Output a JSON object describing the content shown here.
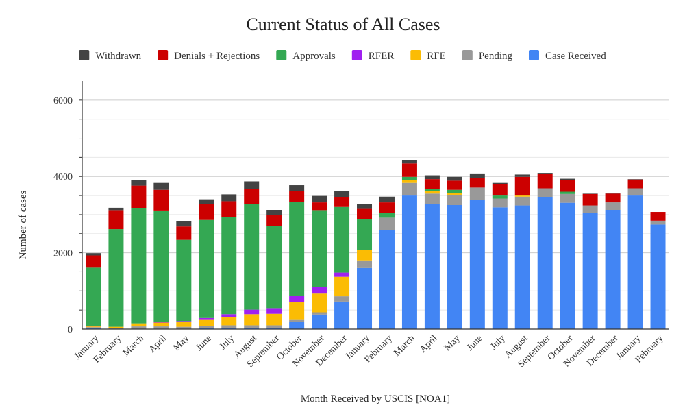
{
  "chart_data": {
    "type": "bar",
    "stacked": true,
    "title": "Current Status of All Cases",
    "xlabel": "Month Received by USCIS [NOA1]",
    "ylabel": "Number of cases",
    "ylim": [
      0,
      6000
    ],
    "yticks": [
      0,
      2000,
      4000,
      6000
    ],
    "ytick_labels": [
      "0",
      "2000",
      "4000",
      "6000"
    ],
    "grid": true,
    "legend_position": "top",
    "categories": [
      "January",
      "February",
      "March",
      "April",
      "May",
      "June",
      "July",
      "August",
      "September",
      "October",
      "November",
      "December",
      "January",
      "February",
      "March",
      "April",
      "May",
      "June",
      "July",
      "August",
      "September",
      "October",
      "November",
      "December",
      "January",
      "February"
    ],
    "legend": [
      {
        "name": "Withdrawn",
        "color": "#434343"
      },
      {
        "name": "Denials + Rejections",
        "color": "#cc0000"
      },
      {
        "name": "Approvals",
        "color": "#34a853"
      },
      {
        "name": "RFER",
        "color": "#a020f0"
      },
      {
        "name": "RFE",
        "color": "#fbbc04"
      },
      {
        "name": "Pending",
        "color": "#999999"
      },
      {
        "name": "Case Received",
        "color": "#4285f4"
      }
    ],
    "series": [
      {
        "name": "Case Received",
        "color": "#4285f4",
        "values": [
          20,
          0,
          0,
          0,
          0,
          30,
          30,
          30,
          30,
          180,
          380,
          720,
          1600,
          2600,
          3500,
          3270,
          3250,
          3390,
          3190,
          3240,
          3460,
          3310,
          3050,
          3120,
          3500,
          2740
        ]
      },
      {
        "name": "Pending",
        "color": "#999999",
        "values": [
          30,
          30,
          70,
          70,
          60,
          60,
          70,
          70,
          70,
          60,
          60,
          140,
          200,
          320,
          330,
          280,
          270,
          320,
          230,
          230,
          230,
          230,
          190,
          200,
          190,
          100
        ]
      },
      {
        "name": "RFE",
        "color": "#fbbc04",
        "values": [
          20,
          30,
          80,
          100,
          120,
          150,
          220,
          290,
          300,
          460,
          490,
          510,
          280,
          0,
          70,
          60,
          40,
          0,
          0,
          30,
          0,
          0,
          0,
          0,
          0,
          0
        ]
      },
      {
        "name": "RFER",
        "color": "#a020f0",
        "values": [
          10,
          0,
          0,
          20,
          30,
          50,
          70,
          120,
          150,
          180,
          180,
          110,
          0,
          0,
          0,
          0,
          0,
          0,
          0,
          0,
          0,
          0,
          0,
          0,
          0,
          0
        ]
      },
      {
        "name": "Approvals",
        "color": "#34a853",
        "values": [
          1530,
          2560,
          3020,
          2900,
          2130,
          2570,
          2540,
          2770,
          2150,
          2460,
          1990,
          1720,
          810,
          120,
          90,
          60,
          90,
          0,
          80,
          0,
          0,
          60,
          0,
          0,
          0,
          0
        ]
      },
      {
        "name": "Denials + Rejections",
        "color": "#cc0000",
        "values": [
          320,
          480,
          590,
          560,
          350,
          410,
          420,
          390,
          290,
          270,
          220,
          250,
          260,
          280,
          350,
          260,
          240,
          250,
          300,
          490,
          370,
          300,
          300,
          230,
          230,
          230
        ]
      },
      {
        "name": "Withdrawn",
        "color": "#434343",
        "values": [
          60,
          80,
          140,
          180,
          140,
          130,
          180,
          200,
          120,
          160,
          170,
          160,
          130,
          150,
          90,
          100,
          100,
          100,
          30,
          60,
          30,
          40,
          10,
          10,
          10,
          0
        ]
      }
    ]
  }
}
